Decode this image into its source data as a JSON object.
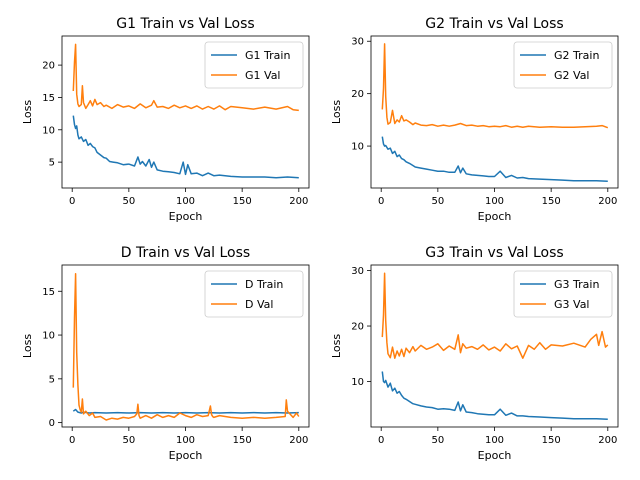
{
  "colors": {
    "train": "#1f77b4",
    "val": "#ff7f0e"
  },
  "chart_data": [
    {
      "type": "line",
      "title": "G1 Train vs Val Loss",
      "xlabel": "Epoch",
      "ylabel": "Loss",
      "xlim": [
        -9,
        209
      ],
      "ylim": [
        1.0,
        24.5
      ],
      "xticks": [
        0,
        50,
        100,
        150,
        200
      ],
      "yticks": [
        5,
        10,
        15,
        20
      ],
      "legend": "upper right",
      "series": [
        {
          "name": "G1 Train",
          "x": [
            1,
            2,
            3,
            4,
            5,
            6,
            8,
            10,
            12,
            14,
            16,
            18,
            20,
            22,
            25,
            28,
            30,
            33,
            36,
            40,
            45,
            50,
            55,
            58,
            60,
            62,
            65,
            68,
            70,
            72,
            75,
            80,
            85,
            90,
            95,
            98,
            100,
            102,
            105,
            110,
            115,
            120,
            125,
            130,
            140,
            150,
            160,
            170,
            180,
            190,
            200
          ],
          "y": [
            12.2,
            10.8,
            10.2,
            10.6,
            9.2,
            8.6,
            8.9,
            8.2,
            8.5,
            7.6,
            7.9,
            7.4,
            7.2,
            6.5,
            6.1,
            5.7,
            5.6,
            5.1,
            5.0,
            4.9,
            4.6,
            4.7,
            4.4,
            5.8,
            4.7,
            5.1,
            4.4,
            5.4,
            4.2,
            5.0,
            3.8,
            3.6,
            3.5,
            3.4,
            3.2,
            5.0,
            3.1,
            4.6,
            3.2,
            3.3,
            2.9,
            3.3,
            2.9,
            3.0,
            2.8,
            2.7,
            2.7,
            2.7,
            2.6,
            2.7,
            2.6
          ]
        },
        {
          "name": "G1 Val",
          "x": [
            1,
            2,
            3,
            4,
            5,
            6,
            8,
            9,
            10,
            12,
            14,
            16,
            18,
            20,
            22,
            25,
            28,
            30,
            35,
            40,
            45,
            50,
            55,
            60,
            65,
            70,
            72,
            75,
            80,
            85,
            90,
            95,
            100,
            105,
            110,
            115,
            120,
            125,
            130,
            135,
            140,
            150,
            160,
            170,
            180,
            190,
            195,
            200
          ],
          "y": [
            16.0,
            20.5,
            23.2,
            15.5,
            14.0,
            13.6,
            13.9,
            16.8,
            14.2,
            13.3,
            13.9,
            14.5,
            13.7,
            14.7,
            13.9,
            14.2,
            13.6,
            13.8,
            13.3,
            13.9,
            13.5,
            13.7,
            13.3,
            14.0,
            13.4,
            13.8,
            14.5,
            13.5,
            13.6,
            13.3,
            13.8,
            13.4,
            13.7,
            13.3,
            13.7,
            13.2,
            13.6,
            13.2,
            13.7,
            13.1,
            13.6,
            13.4,
            13.2,
            13.5,
            13.2,
            13.6,
            13.1,
            13.0
          ]
        }
      ]
    },
    {
      "type": "line",
      "title": "G2 Train vs Val Loss",
      "xlabel": "Epoch",
      "ylabel": "Loss",
      "xlim": [
        -9,
        209
      ],
      "ylim": [
        2.0,
        31.0
      ],
      "xticks": [
        0,
        50,
        100,
        150,
        200
      ],
      "yticks": [
        10,
        20,
        30
      ],
      "legend": "upper right",
      "series": [
        {
          "name": "G2 Train",
          "x": [
            1,
            2,
            3,
            4,
            6,
            8,
            10,
            12,
            14,
            16,
            18,
            20,
            22,
            25,
            28,
            30,
            35,
            40,
            45,
            50,
            55,
            60,
            65,
            68,
            70,
            72,
            75,
            80,
            85,
            90,
            95,
            100,
            105,
            110,
            115,
            120,
            125,
            130,
            140,
            150,
            160,
            170,
            180,
            190,
            200
          ],
          "y": [
            11.8,
            10.4,
            10.0,
            10.1,
            9.4,
            9.6,
            8.6,
            9.0,
            8.0,
            8.3,
            7.6,
            7.4,
            7.0,
            6.7,
            6.3,
            6.0,
            5.8,
            5.6,
            5.4,
            5.2,
            5.2,
            5.0,
            5.0,
            6.2,
            4.9,
            5.8,
            4.7,
            4.5,
            4.4,
            4.3,
            4.2,
            4.2,
            5.2,
            4.0,
            4.4,
            3.9,
            4.0,
            3.8,
            3.7,
            3.6,
            3.5,
            3.4,
            3.4,
            3.4,
            3.3
          ]
        },
        {
          "name": "G2 Val",
          "x": [
            1,
            2,
            3,
            4,
            5,
            6,
            8,
            10,
            12,
            14,
            16,
            18,
            20,
            22,
            25,
            28,
            30,
            35,
            40,
            45,
            50,
            55,
            60,
            65,
            70,
            75,
            80,
            85,
            90,
            95,
            100,
            105,
            110,
            115,
            120,
            125,
            130,
            140,
            150,
            160,
            170,
            180,
            190,
            195,
            200
          ],
          "y": [
            17.0,
            21.0,
            29.5,
            19.5,
            15.5,
            14.2,
            14.5,
            16.8,
            14.3,
            15.0,
            14.6,
            15.8,
            14.8,
            15.0,
            14.6,
            14.1,
            14.4,
            14.0,
            13.9,
            14.1,
            13.8,
            14.0,
            13.8,
            14.0,
            14.3,
            13.9,
            14.0,
            13.8,
            13.9,
            13.7,
            13.8,
            13.7,
            13.9,
            13.6,
            13.8,
            13.6,
            13.8,
            13.6,
            13.7,
            13.6,
            13.6,
            13.7,
            13.8,
            13.9,
            13.5
          ]
        }
      ]
    },
    {
      "type": "line",
      "title": "D Train vs Val Loss",
      "xlabel": "Epoch",
      "ylabel": "Loss",
      "xlim": [
        -9,
        209
      ],
      "ylim": [
        -0.5,
        18.0
      ],
      "xticks": [
        0,
        50,
        100,
        150,
        200
      ],
      "yticks": [
        0,
        5,
        10,
        15
      ],
      "legend": "upper right",
      "series": [
        {
          "name": "D Train",
          "x": [
            1,
            3,
            5,
            8,
            10,
            15,
            20,
            30,
            40,
            50,
            60,
            70,
            80,
            90,
            100,
            110,
            120,
            130,
            140,
            150,
            160,
            170,
            180,
            190,
            200
          ],
          "y": [
            1.3,
            1.5,
            1.2,
            1.1,
            1.2,
            1.1,
            1.15,
            1.1,
            1.15,
            1.1,
            1.15,
            1.1,
            1.15,
            1.1,
            1.15,
            1.1,
            1.15,
            1.1,
            1.15,
            1.1,
            1.15,
            1.1,
            1.15,
            1.1,
            1.15
          ]
        },
        {
          "name": "D Val",
          "x": [
            1,
            2,
            3,
            4,
            5,
            6,
            7,
            8,
            9,
            10,
            12,
            15,
            18,
            20,
            25,
            30,
            35,
            40,
            45,
            50,
            55,
            57,
            58,
            59,
            60,
            65,
            70,
            75,
            80,
            85,
            90,
            95,
            100,
            105,
            110,
            115,
            120,
            122,
            123,
            124,
            125,
            130,
            140,
            150,
            160,
            170,
            180,
            188,
            189,
            190,
            195,
            198,
            200
          ],
          "y": [
            4.0,
            12.0,
            17.0,
            8.0,
            4.3,
            2.0,
            1.5,
            1.2,
            2.7,
            1.0,
            1.3,
            0.8,
            1.1,
            0.6,
            0.7,
            0.3,
            0.5,
            0.4,
            0.6,
            0.5,
            0.7,
            1.0,
            2.1,
            0.8,
            0.5,
            0.8,
            0.5,
            0.9,
            0.6,
            0.8,
            0.6,
            1.1,
            0.8,
            0.6,
            0.9,
            0.7,
            0.8,
            1.9,
            0.9,
            0.7,
            0.6,
            0.8,
            0.6,
            0.5,
            0.6,
            0.5,
            0.6,
            0.7,
            2.6,
            1.3,
            0.6,
            1.1,
            0.7
          ]
        }
      ]
    },
    {
      "type": "line",
      "title": "G3 Train vs Val Loss",
      "xlabel": "Epoch",
      "ylabel": "Loss",
      "xlim": [
        -9,
        209
      ],
      "ylim": [
        1.8,
        31.0
      ],
      "xticks": [
        0,
        50,
        100,
        150,
        200
      ],
      "yticks": [
        10,
        20,
        30
      ],
      "legend": "upper right",
      "series": [
        {
          "name": "G3 Train",
          "x": [
            1,
            2,
            3,
            4,
            6,
            8,
            10,
            12,
            14,
            16,
            18,
            20,
            22,
            25,
            28,
            30,
            35,
            40,
            45,
            50,
            55,
            60,
            65,
            68,
            70,
            72,
            75,
            80,
            85,
            90,
            95,
            100,
            105,
            110,
            115,
            120,
            125,
            130,
            140,
            150,
            160,
            170,
            180,
            190,
            200
          ],
          "y": [
            11.8,
            10.0,
            9.8,
            10.2,
            9.0,
            9.7,
            8.3,
            8.8,
            7.9,
            8.2,
            7.5,
            7.0,
            6.8,
            6.4,
            6.0,
            5.9,
            5.6,
            5.4,
            5.3,
            5.0,
            5.1,
            5.0,
            4.8,
            6.3,
            4.7,
            5.8,
            4.5,
            4.4,
            4.2,
            4.1,
            4.0,
            4.0,
            5.0,
            3.9,
            4.3,
            3.8,
            3.8,
            3.7,
            3.6,
            3.5,
            3.4,
            3.3,
            3.3,
            3.3,
            3.2
          ]
        },
        {
          "name": "G3 Val",
          "x": [
            1,
            2,
            3,
            4,
            5,
            6,
            8,
            10,
            12,
            14,
            16,
            18,
            20,
            22,
            25,
            28,
            30,
            35,
            40,
            45,
            50,
            55,
            60,
            65,
            68,
            70,
            72,
            75,
            80,
            85,
            90,
            95,
            100,
            105,
            110,
            115,
            120,
            125,
            130,
            135,
            140,
            145,
            150,
            160,
            170,
            180,
            185,
            190,
            192,
            195,
            198,
            200
          ],
          "y": [
            18.0,
            22.0,
            29.5,
            21.0,
            17.0,
            15.0,
            14.3,
            16.2,
            14.2,
            15.5,
            14.6,
            15.8,
            14.5,
            16.0,
            15.2,
            16.3,
            15.5,
            16.5,
            15.8,
            16.2,
            16.8,
            15.6,
            16.4,
            15.8,
            18.4,
            15.2,
            16.8,
            16.0,
            16.3,
            15.8,
            16.6,
            15.7,
            16.2,
            15.5,
            16.8,
            15.9,
            16.4,
            14.2,
            16.5,
            15.8,
            17.0,
            15.8,
            16.6,
            16.4,
            16.9,
            16.2,
            17.6,
            18.5,
            16.5,
            19.0,
            16.2,
            16.6
          ]
        }
      ]
    }
  ]
}
